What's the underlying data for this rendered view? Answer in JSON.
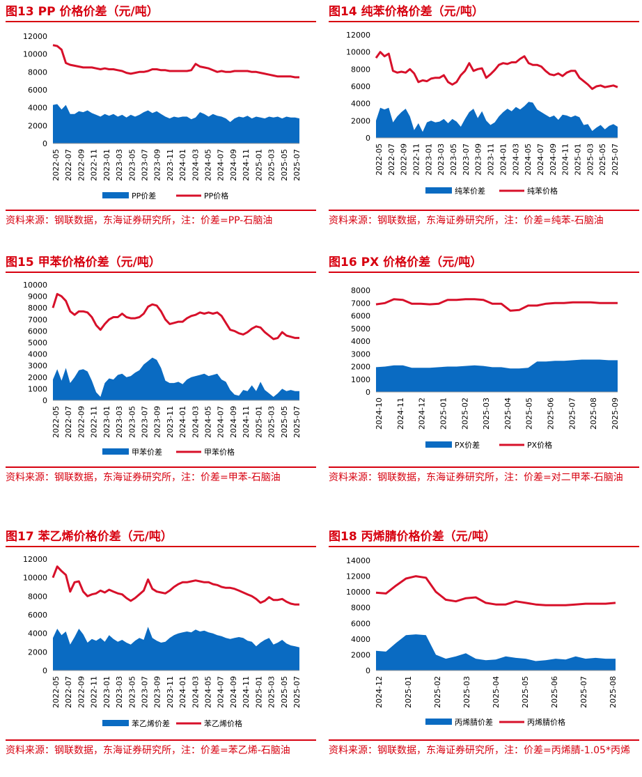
{
  "colors": {
    "accent": "#d7000f",
    "area": "#0a6bc2",
    "line": "#d7102a"
  },
  "chart_data": [
    {
      "type": "area",
      "title_num": "图13",
      "title_text": "PP 价格价差（元/吨）",
      "ylim": [
        0,
        12000
      ],
      "yticks": [
        "0",
        "2000",
        "4000",
        "6000",
        "8000",
        "10000",
        "12000"
      ],
      "xticks": [
        "2022-05",
        "2022-07",
        "2022-09",
        "2022-11",
        "2023-01",
        "2023-03",
        "2023-05",
        "2023-07",
        "2023-09",
        "2023-11",
        "2024-01",
        "2024-03",
        "2024-05",
        "2024-07",
        "2024-09",
        "2024-11",
        "2025-01",
        "2025-03",
        "2025-05",
        "2025-07"
      ],
      "series": [
        {
          "name": "PP价差",
          "kind": "area",
          "values": [
            4300,
            4400,
            3800,
            4300,
            3300,
            3300,
            3600,
            3500,
            3700,
            3400,
            3200,
            3000,
            3300,
            3100,
            3300,
            3000,
            3200,
            2900,
            3200,
            3000,
            3200,
            3500,
            3700,
            3400,
            3600,
            3300,
            3000,
            2800,
            3000,
            2900,
            3000,
            3000,
            2700,
            2900,
            3500,
            3300,
            3000,
            3300,
            3100,
            3000,
            2800,
            2400,
            2800,
            3000,
            2900,
            3100,
            2800,
            3000,
            2900,
            2800,
            3000,
            2900,
            3000,
            2800,
            3000,
            2900,
            2900,
            2800
          ]
        },
        {
          "name": "PP价格",
          "kind": "line",
          "values": [
            11000,
            10900,
            10500,
            9000,
            8800,
            8700,
            8600,
            8500,
            8500,
            8500,
            8400,
            8300,
            8400,
            8300,
            8300,
            8200,
            8100,
            7900,
            7800,
            7900,
            8000,
            8000,
            8100,
            8300,
            8300,
            8200,
            8200,
            8100,
            8100,
            8100,
            8100,
            8100,
            8200,
            8900,
            8600,
            8500,
            8400,
            8200,
            8000,
            8100,
            8000,
            8000,
            8100,
            8100,
            8100,
            8100,
            8000,
            8000,
            7900,
            7800,
            7700,
            7600,
            7500,
            7500,
            7500,
            7500,
            7400,
            7400
          ]
        }
      ],
      "legend": [
        "PP价差",
        "PP价格"
      ],
      "source": "资料来源：钢联数据，东海证券研究所，注：价差=PP-石脑油"
    },
    {
      "type": "area",
      "title_num": "图14",
      "title_text": "纯苯价格价差（元/吨）",
      "ylim": [
        0,
        12000
      ],
      "yticks": [
        "0",
        "2000",
        "4000",
        "6000",
        "8000",
        "10000",
        "12000"
      ],
      "xticks": [
        "2022-05",
        "2022-07",
        "2022-09",
        "2022-11",
        "2023-01",
        "2023-03",
        "2023-05",
        "2023-07",
        "2023-09",
        "2023-11",
        "2024-01",
        "2024-03",
        "2024-05",
        "2024-07",
        "2024-09",
        "2024-11",
        "2025-01",
        "2025-03",
        "2025-05",
        "2025-07"
      ],
      "series": [
        {
          "name": "纯苯价差",
          "kind": "area",
          "values": [
            2000,
            3500,
            3300,
            3500,
            1800,
            2500,
            3000,
            3400,
            2500,
            900,
            1700,
            700,
            1800,
            2000,
            1800,
            1900,
            2200,
            1700,
            2200,
            1900,
            1300,
            2200,
            3000,
            3400,
            2300,
            3100,
            2000,
            1500,
            1800,
            2500,
            3000,
            3400,
            3100,
            3600,
            3300,
            3700,
            4200,
            4100,
            3300,
            3000,
            2700,
            2400,
            2600,
            2100,
            2700,
            2600,
            2400,
            2600,
            2400,
            1500,
            1600,
            800,
            1200,
            1500,
            1000,
            1400,
            1600,
            1300
          ]
        },
        {
          "name": "纯苯价格",
          "kind": "line",
          "values": [
            9300,
            10000,
            9500,
            9800,
            7800,
            7600,
            7700,
            7600,
            8000,
            7500,
            6500,
            6700,
            6600,
            6900,
            7000,
            7000,
            7300,
            6500,
            6200,
            6500,
            7300,
            7800,
            8700,
            7800,
            8000,
            8100,
            7000,
            7400,
            7900,
            8500,
            8700,
            8600,
            8800,
            8800,
            9200,
            9500,
            8700,
            8500,
            8500,
            8300,
            7800,
            7400,
            7300,
            7500,
            7200,
            7600,
            7800,
            7800,
            7000,
            6600,
            6200,
            5700,
            6000,
            6100,
            5900,
            6000,
            6100,
            5900
          ]
        }
      ],
      "legend": [
        "纯苯价差",
        "纯苯价格"
      ],
      "source": "资料来源：钢联数据，东海证券研究所，注：价差=纯苯-石脑油"
    },
    {
      "type": "area",
      "title_num": "图15",
      "title_text": "甲苯价格价差（元/吨）",
      "ylim": [
        0,
        10000
      ],
      "yticks": [
        "0",
        "1000",
        "2000",
        "3000",
        "4000",
        "5000",
        "6000",
        "7000",
        "8000",
        "9000",
        "10000"
      ],
      "xticks": [
        "2022-05",
        "2022-07",
        "2022-09",
        "2022-11",
        "2023-01",
        "2023-03",
        "2023-05",
        "2023-07",
        "2023-09",
        "2023-11",
        "2024-01",
        "2024-03",
        "2024-05",
        "2024-07",
        "2024-09",
        "2024-11",
        "2025-01",
        "2025-03",
        "2025-05",
        "2025-07"
      ],
      "series": [
        {
          "name": "甲苯价差",
          "kind": "area",
          "values": [
            1800,
            2700,
            1700,
            2800,
            1500,
            2000,
            2600,
            2700,
            2500,
            1700,
            700,
            300,
            1500,
            1900,
            1800,
            2200,
            2300,
            2000,
            2100,
            2400,
            2600,
            3100,
            3400,
            3700,
            3500,
            2800,
            1700,
            1500,
            1500,
            1600,
            1400,
            1800,
            2000,
            2100,
            2200,
            2300,
            2100,
            2200,
            2300,
            1800,
            1600,
            900,
            500,
            400,
            900,
            800,
            1300,
            800,
            1600,
            900,
            600,
            300,
            600,
            1000,
            800,
            900,
            800,
            800
          ]
        },
        {
          "name": "甲苯价格",
          "kind": "line",
          "values": [
            8000,
            9200,
            9000,
            8600,
            7700,
            7400,
            7700,
            7700,
            7600,
            7200,
            6500,
            6100,
            6600,
            7000,
            7200,
            7200,
            7500,
            7200,
            7100,
            7100,
            7200,
            7500,
            8100,
            8300,
            8200,
            7700,
            7000,
            6600,
            6700,
            6800,
            6800,
            7100,
            7300,
            7400,
            7600,
            7500,
            7600,
            7500,
            7600,
            7300,
            6700,
            6100,
            6000,
            5800,
            5700,
            5900,
            6200,
            6400,
            6300,
            5900,
            5600,
            5300,
            5400,
            5900,
            5600,
            5500,
            5400,
            5400
          ]
        }
      ],
      "legend": [
        "甲苯价差",
        "甲苯价格"
      ],
      "source": "资料来源：钢联数据，东海证券研究所，注：价差=甲苯-石脑油"
    },
    {
      "type": "area",
      "title_num": "图16",
      "title_text": "PX 价格价差（元/吨）",
      "ylim": [
        0,
        8000
      ],
      "yticks": [
        "0",
        "1000",
        "2000",
        "3000",
        "4000",
        "5000",
        "6000",
        "7000",
        "8000"
      ],
      "xticks": [
        "2024-10",
        "2024-11",
        "2024-12",
        "2025-01",
        "2025-02",
        "2025-03",
        "2025-04",
        "2025-05",
        "2025-06",
        "2025-07",
        "2025-08",
        "2025-09"
      ],
      "series": [
        {
          "name": "PX价差",
          "kind": "area",
          "values": [
            1950,
            2000,
            2100,
            2100,
            1900,
            1900,
            1900,
            1950,
            2000,
            2000,
            2050,
            2100,
            2050,
            1950,
            1950,
            1850,
            1850,
            1900,
            2400,
            2400,
            2450,
            2450,
            2500,
            2550,
            2550,
            2550,
            2500,
            2500
          ]
        },
        {
          "name": "PX价格",
          "kind": "line",
          "values": [
            6900,
            7000,
            7300,
            7250,
            6950,
            6950,
            6900,
            6950,
            7250,
            7250,
            7300,
            7300,
            7250,
            6950,
            6950,
            6400,
            6450,
            6800,
            6800,
            6950,
            7000,
            7000,
            7050,
            7050,
            7050,
            7000,
            7000,
            7000
          ]
        }
      ],
      "legend": [
        "PX价差",
        "PX价格"
      ],
      "source": "资料来源：钢联数据，东海证券研究所，注：价差=对二甲苯-石脑油"
    },
    {
      "type": "area",
      "title_num": "图17",
      "title_text": "苯乙烯价格价差（元/吨）",
      "ylim": [
        0,
        12000
      ],
      "yticks": [
        "0",
        "2000",
        "4000",
        "6000",
        "8000",
        "10000",
        "12000"
      ],
      "xticks": [
        "2022-05",
        "2022-07",
        "2022-09",
        "2022-11",
        "2023-01",
        "2023-03",
        "2023-05",
        "2023-07",
        "2023-09",
        "2023-11",
        "2024-01",
        "2024-03",
        "2024-05",
        "2024-07",
        "2024-09",
        "2024-11",
        "2025-01",
        "2025-03",
        "2025-05",
        "2025-07"
      ],
      "series": [
        {
          "name": "苯乙烯价差",
          "kind": "area",
          "values": [
            3500,
            4500,
            3800,
            4200,
            2800,
            3600,
            4500,
            3900,
            3000,
            3400,
            3200,
            3500,
            3100,
            3800,
            3400,
            3100,
            3300,
            3000,
            2800,
            3200,
            3500,
            3300,
            4700,
            3500,
            3200,
            3000,
            3100,
            3500,
            3800,
            4000,
            4100,
            4200,
            4100,
            4400,
            4200,
            4300,
            4100,
            4000,
            3800,
            3700,
            3500,
            3400,
            3500,
            3600,
            3500,
            3200,
            3100,
            2600,
            3000,
            3300,
            3500,
            2800,
            3000,
            3300,
            2900,
            2700,
            2600,
            2500
          ]
        },
        {
          "name": "苯乙烯价格",
          "kind": "line",
          "values": [
            10000,
            11200,
            10700,
            10300,
            8500,
            9500,
            9600,
            8500,
            8000,
            8200,
            8300,
            8600,
            8400,
            8700,
            8500,
            8300,
            8200,
            7800,
            7500,
            7800,
            8200,
            8600,
            9800,
            8800,
            8500,
            8400,
            8300,
            8600,
            9000,
            9300,
            9500,
            9500,
            9600,
            9700,
            9600,
            9500,
            9500,
            9300,
            9200,
            9000,
            8900,
            8900,
            8800,
            8600,
            8400,
            8200,
            8000,
            7700,
            7300,
            7500,
            7900,
            7600,
            7600,
            7700,
            7400,
            7200,
            7100,
            7100
          ]
        }
      ],
      "legend": [
        "苯乙烯价差",
        "苯乙烯价格"
      ],
      "source": "资料来源：钢联数据，东海证券研究所，注：价差=苯乙烯-石脑油"
    },
    {
      "type": "area",
      "title_num": "图18",
      "title_text": "丙烯腈价格价差（元/吨）",
      "ylim": [
        0,
        14000
      ],
      "yticks": [
        "0",
        "2000",
        "4000",
        "6000",
        "8000",
        "10000",
        "12000",
        "14000"
      ],
      "xticks": [
        "2024-12",
        "2025-01",
        "2025-02",
        "2025-03",
        "2025-04",
        "2025-05",
        "2025-06",
        "2025-07",
        "2025-08"
      ],
      "series": [
        {
          "name": "丙烯腈价差",
          "kind": "area",
          "values": [
            2500,
            2400,
            3500,
            4500,
            4600,
            4500,
            2000,
            1500,
            1800,
            2200,
            1500,
            1300,
            1400,
            1800,
            1600,
            1500,
            1200,
            1300,
            1500,
            1400,
            1800,
            1500,
            1600,
            1500,
            1500
          ]
        },
        {
          "name": "丙烯腈价格",
          "kind": "line",
          "values": [
            9900,
            9800,
            10800,
            11700,
            12000,
            11800,
            10000,
            9000,
            8800,
            9200,
            9300,
            8600,
            8400,
            8400,
            8800,
            8600,
            8400,
            8300,
            8300,
            8300,
            8400,
            8500,
            8500,
            8500,
            8600
          ]
        }
      ],
      "legend": [
        "丙烯腈价差",
        "丙烯腈价格"
      ],
      "source": "资料来源：钢联数据，东海证券研究所，注：价差=丙烯腈-1.05*丙烯"
    }
  ]
}
